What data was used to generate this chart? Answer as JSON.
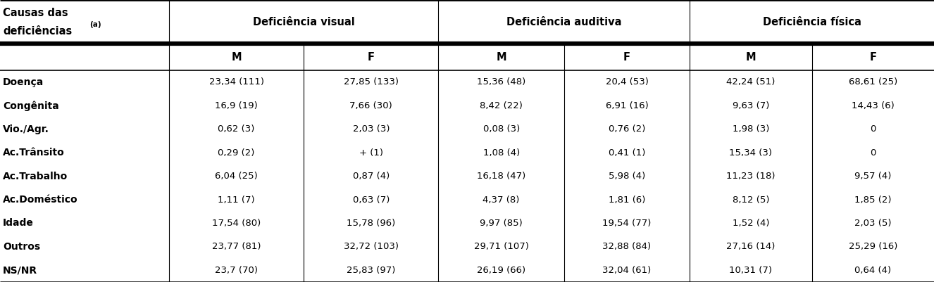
{
  "rows": [
    [
      "Doença",
      "23,34 (111)",
      "27,85 (133)",
      "15,36 (48)",
      "20,4 (53)",
      "42,24 (51)",
      "68,61 (25)"
    ],
    [
      "Congênita",
      "16,9 (19)",
      "7,66 (30)",
      "8,42 (22)",
      "6,91 (16)",
      "9,63 (7)",
      "14,43 (6)"
    ],
    [
      "Vio./Agr.",
      "0,62 (3)",
      "2,03 (3)",
      "0,08 (3)",
      "0,76 (2)",
      "1,98 (3)",
      "0"
    ],
    [
      "Ac.Trânsito",
      "0,29 (2)",
      "+ (1)",
      "1,08 (4)",
      "0,41 (1)",
      "15,34 (3)",
      "0"
    ],
    [
      "Ac.Trabalho",
      "6,04 (25)",
      "0,87 (4)",
      "16,18 (47)",
      "5,98 (4)",
      "11,23 (18)",
      "9,57 (4)"
    ],
    [
      "Ac.Doméstico",
      "1,11 (7)",
      "0,63 (7)",
      "4,37 (8)",
      "1,81 (6)",
      "8,12 (5)",
      "1,85 (2)"
    ],
    [
      "Idade",
      "17,54 (80)",
      "15,78 (96)",
      "9,97 (85)",
      "19,54 (77)",
      "1,52 (4)",
      "2,03 (5)"
    ],
    [
      "Outros",
      "23,77 (81)",
      "32,72 (103)",
      "29,71 (107)",
      "32,88 (84)",
      "27,16 (14)",
      "25,29 (16)"
    ],
    [
      "NS/NR",
      "23,7 (70)",
      "25,83 (97)",
      "26,19 (66)",
      "32,04 (61)",
      "10,31 (7)",
      "0,64 (4)"
    ]
  ],
  "bg_color": "#ffffff",
  "text_color": "#000000",
  "header_fontsize": 10.5,
  "data_fontsize": 9.5,
  "row_label_fontsize": 10.0,
  "fig_width": 13.26,
  "fig_height": 4.01,
  "dpi": 100
}
